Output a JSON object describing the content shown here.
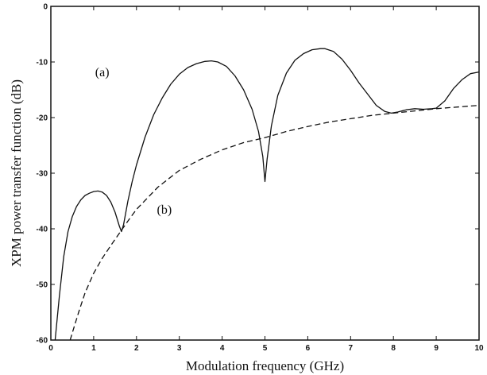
{
  "chart_data": {
    "type": "line",
    "title": "",
    "xlabel": "Modulation frequency (GHz)",
    "ylabel": "XPM power transfer function (dB)",
    "xlim": [
      0,
      10
    ],
    "ylim": [
      -60,
      0
    ],
    "xticks": [
      "0",
      "1",
      "2",
      "3",
      "4",
      "5",
      "6",
      "7",
      "8",
      "9",
      "10"
    ],
    "yticks": [
      "0",
      "-10",
      "-20",
      "-30",
      "-40",
      "-50",
      "-60"
    ],
    "grid": false,
    "legend": "none",
    "annotations": [
      {
        "text": "(a)",
        "x": 1.2,
        "y": -12.6
      },
      {
        "text": "(b)",
        "x": 2.65,
        "y": -37.3
      }
    ],
    "series": [
      {
        "label": "(a)",
        "style": "solid",
        "color": "#111111",
        "x": [
          0.1,
          0.2,
          0.3,
          0.4,
          0.5,
          0.6,
          0.7,
          0.8,
          0.9,
          1.0,
          1.1,
          1.2,
          1.3,
          1.4,
          1.5,
          1.6,
          1.65,
          1.7,
          1.8,
          1.9,
          2.0,
          2.2,
          2.4,
          2.6,
          2.8,
          3.0,
          3.2,
          3.4,
          3.6,
          3.75,
          3.9,
          4.1,
          4.3,
          4.5,
          4.7,
          4.85,
          4.95,
          5.0,
          5.05,
          5.15,
          5.3,
          5.5,
          5.7,
          5.9,
          6.1,
          6.3,
          6.4,
          6.6,
          6.8,
          7.0,
          7.2,
          7.4,
          7.6,
          7.8,
          7.95,
          8.1,
          8.3,
          8.5,
          8.7,
          8.9,
          9.0,
          9.2,
          9.4,
          9.6,
          9.8,
          10.0
        ],
        "y": [
          -60,
          -52,
          -45,
          -40.5,
          -37.8,
          -36,
          -34.8,
          -34,
          -33.6,
          -33.3,
          -33.2,
          -33.4,
          -34,
          -35.2,
          -37,
          -39.5,
          -40.5,
          -39.2,
          -35,
          -31.5,
          -28.5,
          -23.5,
          -19.5,
          -16.5,
          -14,
          -12.2,
          -11,
          -10.3,
          -9.9,
          -9.8,
          -10,
          -10.8,
          -12.5,
          -15,
          -18.5,
          -22.5,
          -27,
          -31.5,
          -27.5,
          -21.5,
          -16,
          -12,
          -9.7,
          -8.5,
          -7.8,
          -7.6,
          -7.6,
          -8.1,
          -9.5,
          -11.5,
          -13.8,
          -15.8,
          -17.8,
          -18.9,
          -19.2,
          -19,
          -18.6,
          -18.4,
          -18.5,
          -18.4,
          -18.3,
          -17,
          -14.8,
          -13.2,
          -12.1,
          -11.8
        ]
      },
      {
        "label": "(b)",
        "style": "dashed",
        "color": "#111111",
        "x": [
          0.45,
          0.55,
          0.65,
          0.8,
          1.0,
          1.2,
          1.4,
          1.6,
          1.8,
          2.0,
          2.5,
          3.0,
          3.5,
          4.0,
          4.5,
          5.0,
          5.5,
          6.0,
          6.5,
          7.0,
          7.5,
          8.0,
          8.5,
          9.0,
          9.5,
          10.0
        ],
        "y": [
          -60,
          -57.5,
          -55,
          -51.5,
          -48,
          -45.3,
          -43,
          -40.8,
          -38.6,
          -36.5,
          -32.5,
          -29.5,
          -27.5,
          -25.8,
          -24.5,
          -23.6,
          -22.5,
          -21.6,
          -20.8,
          -20.2,
          -19.6,
          -19.2,
          -18.8,
          -18.4,
          -18.1,
          -17.8
        ]
      }
    ]
  }
}
